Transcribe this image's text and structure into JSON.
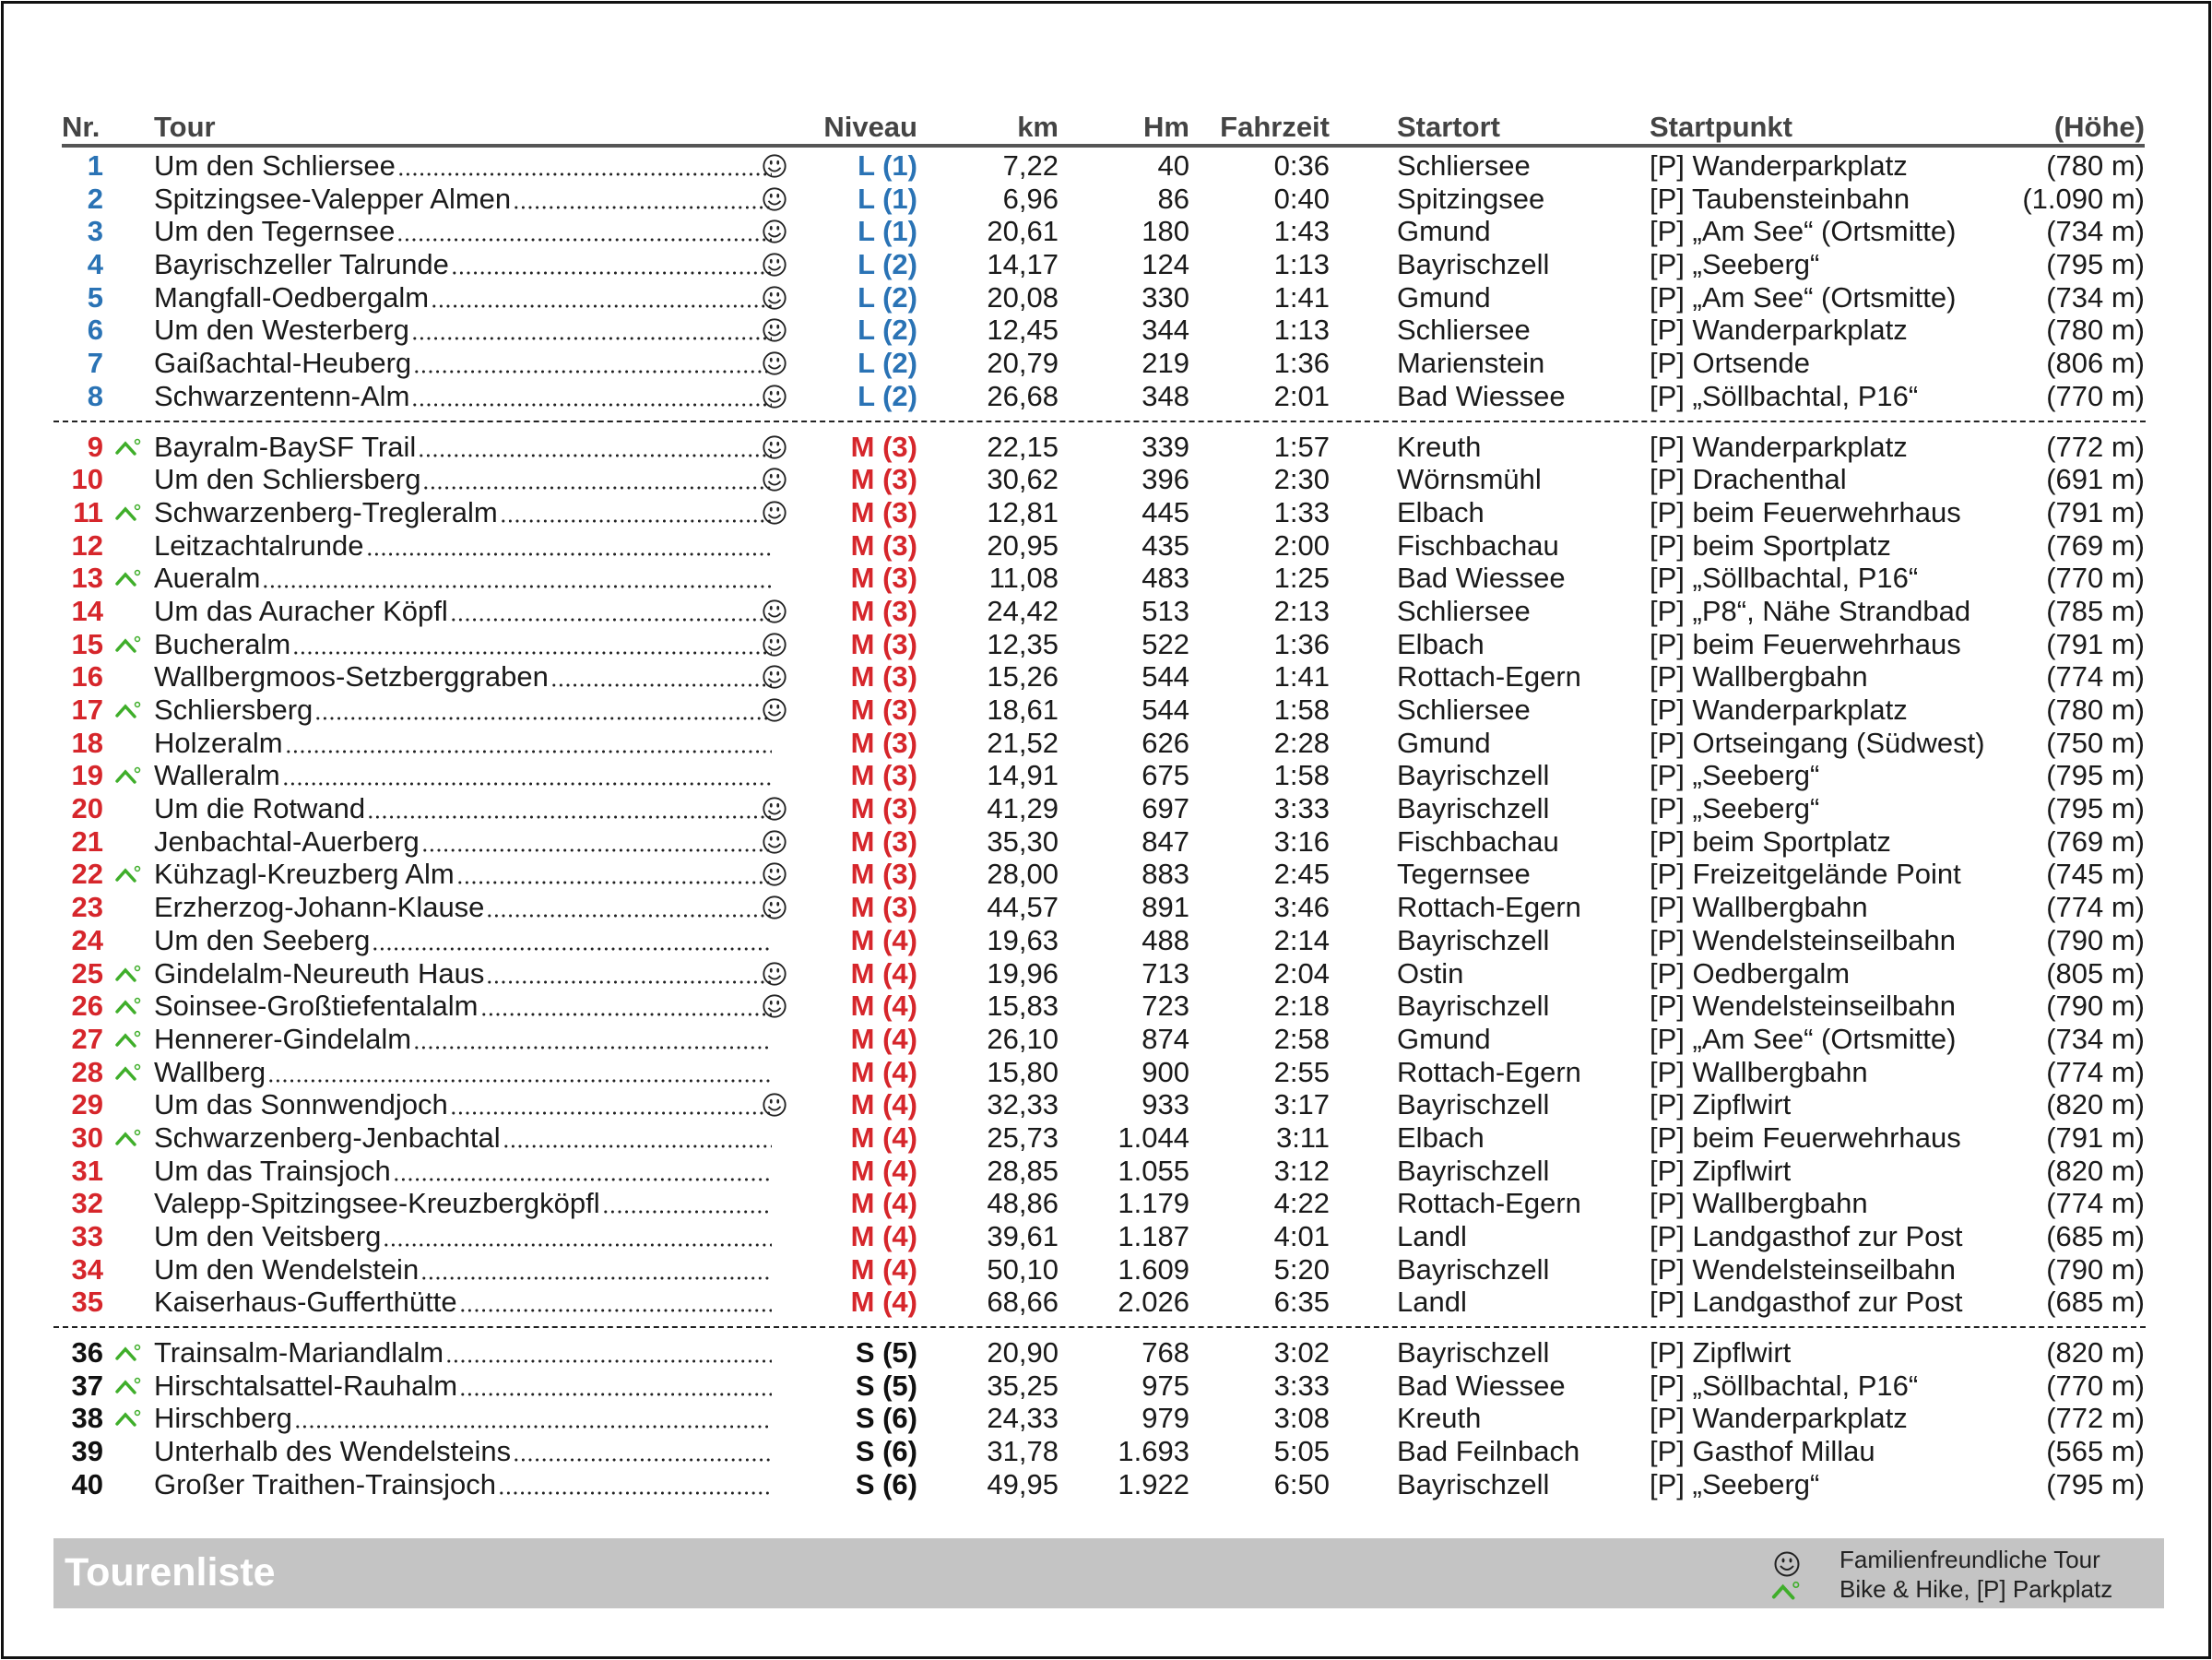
{
  "title": "Tourenliste",
  "colors": {
    "L": "#2a73b5",
    "M": "#d6262b",
    "S": "#111111",
    "bike": "#3fae2a",
    "footer": "#c4c4c4"
  },
  "headers": {
    "nr": "Nr.",
    "tour": "Tour",
    "niveau": "Niveau",
    "km": "km",
    "hm": "Hm",
    "fahrzeit": "Fahrzeit",
    "startort": "Startort",
    "startpunkt": "Startpunkt",
    "hoehe": "(Höhe)"
  },
  "legend": {
    "family": "Familienfreundliche Tour",
    "bike": "Bike & Hike, [P] Parkplatz"
  },
  "groups": [
    [
      {
        "nr": "1",
        "tour": "Um den Schliersee",
        "family": true,
        "bike": false,
        "level": "L",
        "niveau": "L (1)",
        "km": "7,22",
        "hm": "40",
        "time": "0:36",
        "startort": "Schliersee",
        "startpunkt": "[P] Wanderparkplatz",
        "hoehe": "(780 m)"
      },
      {
        "nr": "2",
        "tour": "Spitzingsee-Valepper Almen",
        "family": true,
        "bike": false,
        "level": "L",
        "niveau": "L (1)",
        "km": "6,96",
        "hm": "86",
        "time": "0:40",
        "startort": "Spitzingsee",
        "startpunkt": "[P] Taubensteinbahn",
        "hoehe": "(1.090 m)"
      },
      {
        "nr": "3",
        "tour": "Um den Tegernsee",
        "family": true,
        "bike": false,
        "level": "L",
        "niveau": "L (1)",
        "km": "20,61",
        "hm": "180",
        "time": "1:43",
        "startort": "Gmund",
        "startpunkt": "[P] „Am See“ (Ortsmitte)",
        "hoehe": "(734 m)"
      },
      {
        "nr": "4",
        "tour": "Bayrischzeller Talrunde",
        "family": true,
        "bike": false,
        "level": "L",
        "niveau": "L (2)",
        "km": "14,17",
        "hm": "124",
        "time": "1:13",
        "startort": "Bayrischzell",
        "startpunkt": "[P] „Seeberg“",
        "hoehe": "(795 m)"
      },
      {
        "nr": "5",
        "tour": "Mangfall-Oedbergalm",
        "family": true,
        "bike": false,
        "level": "L",
        "niveau": "L (2)",
        "km": "20,08",
        "hm": "330",
        "time": "1:41",
        "startort": "Gmund",
        "startpunkt": "[P] „Am See“ (Ortsmitte)",
        "hoehe": "(734 m)"
      },
      {
        "nr": "6",
        "tour": "Um den Westerberg",
        "family": true,
        "bike": false,
        "level": "L",
        "niveau": "L (2)",
        "km": "12,45",
        "hm": "344",
        "time": "1:13",
        "startort": "Schliersee",
        "startpunkt": "[P] Wanderparkplatz",
        "hoehe": "(780 m)"
      },
      {
        "nr": "7",
        "tour": "Gaißachtal-Heuberg",
        "family": true,
        "bike": false,
        "level": "L",
        "niveau": "L (2)",
        "km": "20,79",
        "hm": "219",
        "time": "1:36",
        "startort": "Marienstein",
        "startpunkt": "[P] Ortsende",
        "hoehe": "(806 m)"
      },
      {
        "nr": "8",
        "tour": "Schwarzentenn-Alm",
        "family": true,
        "bike": false,
        "level": "L",
        "niveau": "L (2)",
        "km": "26,68",
        "hm": "348",
        "time": "2:01",
        "startort": "Bad Wiessee",
        "startpunkt": "[P] „Söllbachtal, P16“",
        "hoehe": "(770 m)"
      }
    ],
    [
      {
        "nr": "9",
        "tour": "Bayralm-BaySF Trail",
        "family": true,
        "bike": true,
        "level": "M",
        "niveau": "M (3)",
        "km": "22,15",
        "hm": "339",
        "time": "1:57",
        "startort": "Kreuth",
        "startpunkt": "[P] Wanderparkplatz",
        "hoehe": "(772 m)"
      },
      {
        "nr": "10",
        "tour": "Um den Schliersberg",
        "family": true,
        "bike": false,
        "level": "M",
        "niveau": "M (3)",
        "km": "30,62",
        "hm": "396",
        "time": "2:30",
        "startort": "Wörnsmühl",
        "startpunkt": "[P] Drachenthal",
        "hoehe": "(691 m)"
      },
      {
        "nr": "11",
        "tour": "Schwarzenberg-Tregleralm",
        "family": true,
        "bike": true,
        "level": "M",
        "niveau": "M (3)",
        "km": "12,81",
        "hm": "445",
        "time": "1:33",
        "startort": "Elbach",
        "startpunkt": "[P] beim Feuerwehrhaus",
        "hoehe": "(791 m)"
      },
      {
        "nr": "12",
        "tour": "Leitzachtalrunde",
        "family": false,
        "bike": false,
        "level": "M",
        "niveau": "M (3)",
        "km": "20,95",
        "hm": "435",
        "time": "2:00",
        "startort": "Fischbachau",
        "startpunkt": "[P] beim Sportplatz",
        "hoehe": "(769 m)"
      },
      {
        "nr": "13",
        "tour": "Aueralm",
        "family": false,
        "bike": true,
        "level": "M",
        "niveau": "M (3)",
        "km": "11,08",
        "hm": "483",
        "time": "1:25",
        "startort": "Bad Wiessee",
        "startpunkt": "[P] „Söllbachtal, P16“",
        "hoehe": "(770 m)"
      },
      {
        "nr": "14",
        "tour": "Um das Auracher Köpfl",
        "family": true,
        "bike": false,
        "level": "M",
        "niveau": "M (3)",
        "km": "24,42",
        "hm": "513",
        "time": "2:13",
        "startort": "Schliersee",
        "startpunkt": "[P] „P8“, Nähe Strandbad",
        "hoehe": "(785 m)"
      },
      {
        "nr": "15",
        "tour": "Bucheralm",
        "family": true,
        "bike": true,
        "level": "M",
        "niveau": "M (3)",
        "km": "12,35",
        "hm": "522",
        "time": "1:36",
        "startort": "Elbach",
        "startpunkt": "[P] beim Feuerwehrhaus",
        "hoehe": "(791 m)"
      },
      {
        "nr": "16",
        "tour": "Wallbergmoos-Setzberggraben",
        "family": true,
        "bike": false,
        "level": "M",
        "niveau": "M (3)",
        "km": "15,26",
        "hm": "544",
        "time": "1:41",
        "startort": "Rottach-Egern",
        "startpunkt": "[P] Wallbergbahn",
        "hoehe": "(774 m)"
      },
      {
        "nr": "17",
        "tour": "Schliersberg",
        "family": true,
        "bike": true,
        "level": "M",
        "niveau": "M (3)",
        "km": "18,61",
        "hm": "544",
        "time": "1:58",
        "startort": "Schliersee",
        "startpunkt": "[P] Wanderparkplatz",
        "hoehe": "(780 m)"
      },
      {
        "nr": "18",
        "tour": "Holzeralm",
        "family": false,
        "bike": false,
        "level": "M",
        "niveau": "M (3)",
        "km": "21,52",
        "hm": "626",
        "time": "2:28",
        "startort": "Gmund",
        "startpunkt": "[P] Ortseingang (Südwest)",
        "hoehe": "(750 m)"
      },
      {
        "nr": "19",
        "tour": "Walleralm",
        "family": false,
        "bike": true,
        "level": "M",
        "niveau": "M (3)",
        "km": "14,91",
        "hm": "675",
        "time": "1:58",
        "startort": "Bayrischzell",
        "startpunkt": "[P] „Seeberg“",
        "hoehe": "(795 m)"
      },
      {
        "nr": "20",
        "tour": "Um die Rotwand",
        "family": true,
        "bike": false,
        "level": "M",
        "niveau": "M (3)",
        "km": "41,29",
        "hm": "697",
        "time": "3:33",
        "startort": "Bayrischzell",
        "startpunkt": "[P] „Seeberg“",
        "hoehe": "(795 m)"
      },
      {
        "nr": "21",
        "tour": "Jenbachtal-Auerberg",
        "family": true,
        "bike": false,
        "level": "M",
        "niveau": "M (3)",
        "km": "35,30",
        "hm": "847",
        "time": "3:16",
        "startort": "Fischbachau",
        "startpunkt": "[P] beim Sportplatz",
        "hoehe": "(769 m)"
      },
      {
        "nr": "22",
        "tour": "Kühzagl-Kreuzberg Alm",
        "family": true,
        "bike": true,
        "level": "M",
        "niveau": "M (3)",
        "km": "28,00",
        "hm": "883",
        "time": "2:45",
        "startort": "Tegernsee",
        "startpunkt": "[P] Freizeitgelände Point",
        "hoehe": "(745 m)"
      },
      {
        "nr": "23",
        "tour": "Erzherzog-Johann-Klause",
        "family": true,
        "bike": false,
        "level": "M",
        "niveau": "M (3)",
        "km": "44,57",
        "hm": "891",
        "time": "3:46",
        "startort": "Rottach-Egern",
        "startpunkt": "[P] Wallbergbahn",
        "hoehe": "(774 m)"
      },
      {
        "nr": "24",
        "tour": "Um den Seeberg",
        "family": false,
        "bike": false,
        "level": "M",
        "niveau": "M (4)",
        "km": "19,63",
        "hm": "488",
        "time": "2:14",
        "startort": "Bayrischzell",
        "startpunkt": "[P] Wendelsteinseilbahn",
        "hoehe": "(790 m)"
      },
      {
        "nr": "25",
        "tour": "Gindelalm-Neureuth Haus",
        "family": true,
        "bike": true,
        "level": "M",
        "niveau": "M (4)",
        "km": "19,96",
        "hm": "713",
        "time": "2:04",
        "startort": "Ostin",
        "startpunkt": "[P] Oedbergalm",
        "hoehe": "(805 m)"
      },
      {
        "nr": "26",
        "tour": "Soinsee-Großtiefentalalm",
        "family": true,
        "bike": true,
        "level": "M",
        "niveau": "M (4)",
        "km": "15,83",
        "hm": "723",
        "time": "2:18",
        "startort": "Bayrischzell",
        "startpunkt": "[P] Wendelsteinseilbahn",
        "hoehe": "(790 m)"
      },
      {
        "nr": "27",
        "tour": "Hennerer-Gindelalm",
        "family": false,
        "bike": true,
        "level": "M",
        "niveau": "M (4)",
        "km": "26,10",
        "hm": "874",
        "time": "2:58",
        "startort": "Gmund",
        "startpunkt": "[P] „Am See“ (Ortsmitte)",
        "hoehe": "(734 m)"
      },
      {
        "nr": "28",
        "tour": "Wallberg",
        "family": false,
        "bike": true,
        "level": "M",
        "niveau": "M (4)",
        "km": "15,80",
        "hm": "900",
        "time": "2:55",
        "startort": "Rottach-Egern",
        "startpunkt": "[P] Wallbergbahn",
        "hoehe": "(774 m)"
      },
      {
        "nr": "29",
        "tour": "Um das Sonnwendjoch",
        "family": true,
        "bike": false,
        "level": "M",
        "niveau": "M (4)",
        "km": "32,33",
        "hm": "933",
        "time": "3:17",
        "startort": "Bayrischzell",
        "startpunkt": "[P] Zipflwirt",
        "hoehe": "(820 m)"
      },
      {
        "nr": "30",
        "tour": "Schwarzenberg-Jenbachtal",
        "family": false,
        "bike": true,
        "level": "M",
        "niveau": "M (4)",
        "km": "25,73",
        "hm": "1.044",
        "time": "3:11",
        "startort": "Elbach",
        "startpunkt": "[P] beim Feuerwehrhaus",
        "hoehe": "(791 m)"
      },
      {
        "nr": "31",
        "tour": "Um das Trainsjoch",
        "family": false,
        "bike": false,
        "level": "M",
        "niveau": "M (4)",
        "km": "28,85",
        "hm": "1.055",
        "time": "3:12",
        "startort": "Bayrischzell",
        "startpunkt": "[P] Zipflwirt",
        "hoehe": "(820 m)"
      },
      {
        "nr": "32",
        "tour": "Valepp-Spitzingsee-Kreuzbergköpfl",
        "family": false,
        "bike": false,
        "level": "M",
        "niveau": "M (4)",
        "km": "48,86",
        "hm": "1.179",
        "time": "4:22",
        "startort": "Rottach-Egern",
        "startpunkt": "[P] Wallbergbahn",
        "hoehe": "(774 m)"
      },
      {
        "nr": "33",
        "tour": "Um den Veitsberg",
        "family": false,
        "bike": false,
        "level": "M",
        "niveau": "M (4)",
        "km": "39,61",
        "hm": "1.187",
        "time": "4:01",
        "startort": "Landl",
        "startpunkt": "[P] Landgasthof zur Post",
        "hoehe": "(685 m)"
      },
      {
        "nr": "34",
        "tour": "Um den Wendelstein",
        "family": false,
        "bike": false,
        "level": "M",
        "niveau": "M (4)",
        "km": "50,10",
        "hm": "1.609",
        "time": "5:20",
        "startort": "Bayrischzell",
        "startpunkt": "[P] Wendelsteinseilbahn",
        "hoehe": "(790 m)"
      },
      {
        "nr": "35",
        "tour": "Kaiserhaus-Gufferthütte",
        "family": false,
        "bike": false,
        "level": "M",
        "niveau": "M (4)",
        "km": "68,66",
        "hm": "2.026",
        "time": "6:35",
        "startort": "Landl",
        "startpunkt": "[P] Landgasthof zur Post",
        "hoehe": "(685 m)"
      }
    ],
    [
      {
        "nr": "36",
        "tour": "Trainsalm-Mariandlalm",
        "family": false,
        "bike": true,
        "level": "S",
        "niveau": "S (5)",
        "km": "20,90",
        "hm": "768",
        "time": "3:02",
        "startort": "Bayrischzell",
        "startpunkt": "[P] Zipflwirt",
        "hoehe": "(820 m)"
      },
      {
        "nr": "37",
        "tour": "Hirschtalsattel-Rauhalm",
        "family": false,
        "bike": true,
        "level": "S",
        "niveau": "S (5)",
        "km": "35,25",
        "hm": "975",
        "time": "3:33",
        "startort": "Bad Wiessee",
        "startpunkt": "[P] „Söllbachtal, P16“",
        "hoehe": "(770 m)"
      },
      {
        "nr": "38",
        "tour": "Hirschberg",
        "family": false,
        "bike": true,
        "level": "S",
        "niveau": "S (6)",
        "km": "24,33",
        "hm": "979",
        "time": "3:08",
        "startort": "Kreuth",
        "startpunkt": "[P] Wanderparkplatz",
        "hoehe": "(772 m)"
      },
      {
        "nr": "39",
        "tour": "Unterhalb des Wendelsteins",
        "family": false,
        "bike": false,
        "level": "S",
        "niveau": "S (6)",
        "km": "31,78",
        "hm": "1.693",
        "time": "5:05",
        "startort": "Bad Feilnbach",
        "startpunkt": "[P] Gasthof Millau",
        "hoehe": "(565 m)"
      },
      {
        "nr": "40",
        "tour": "Großer Traithen-Trainsjoch",
        "family": false,
        "bike": false,
        "level": "S",
        "niveau": "S (6)",
        "km": "49,95",
        "hm": "1.922",
        "time": "6:50",
        "startort": "Bayrischzell",
        "startpunkt": "[P] „Seeberg“",
        "hoehe": "(795 m)"
      }
    ]
  ]
}
